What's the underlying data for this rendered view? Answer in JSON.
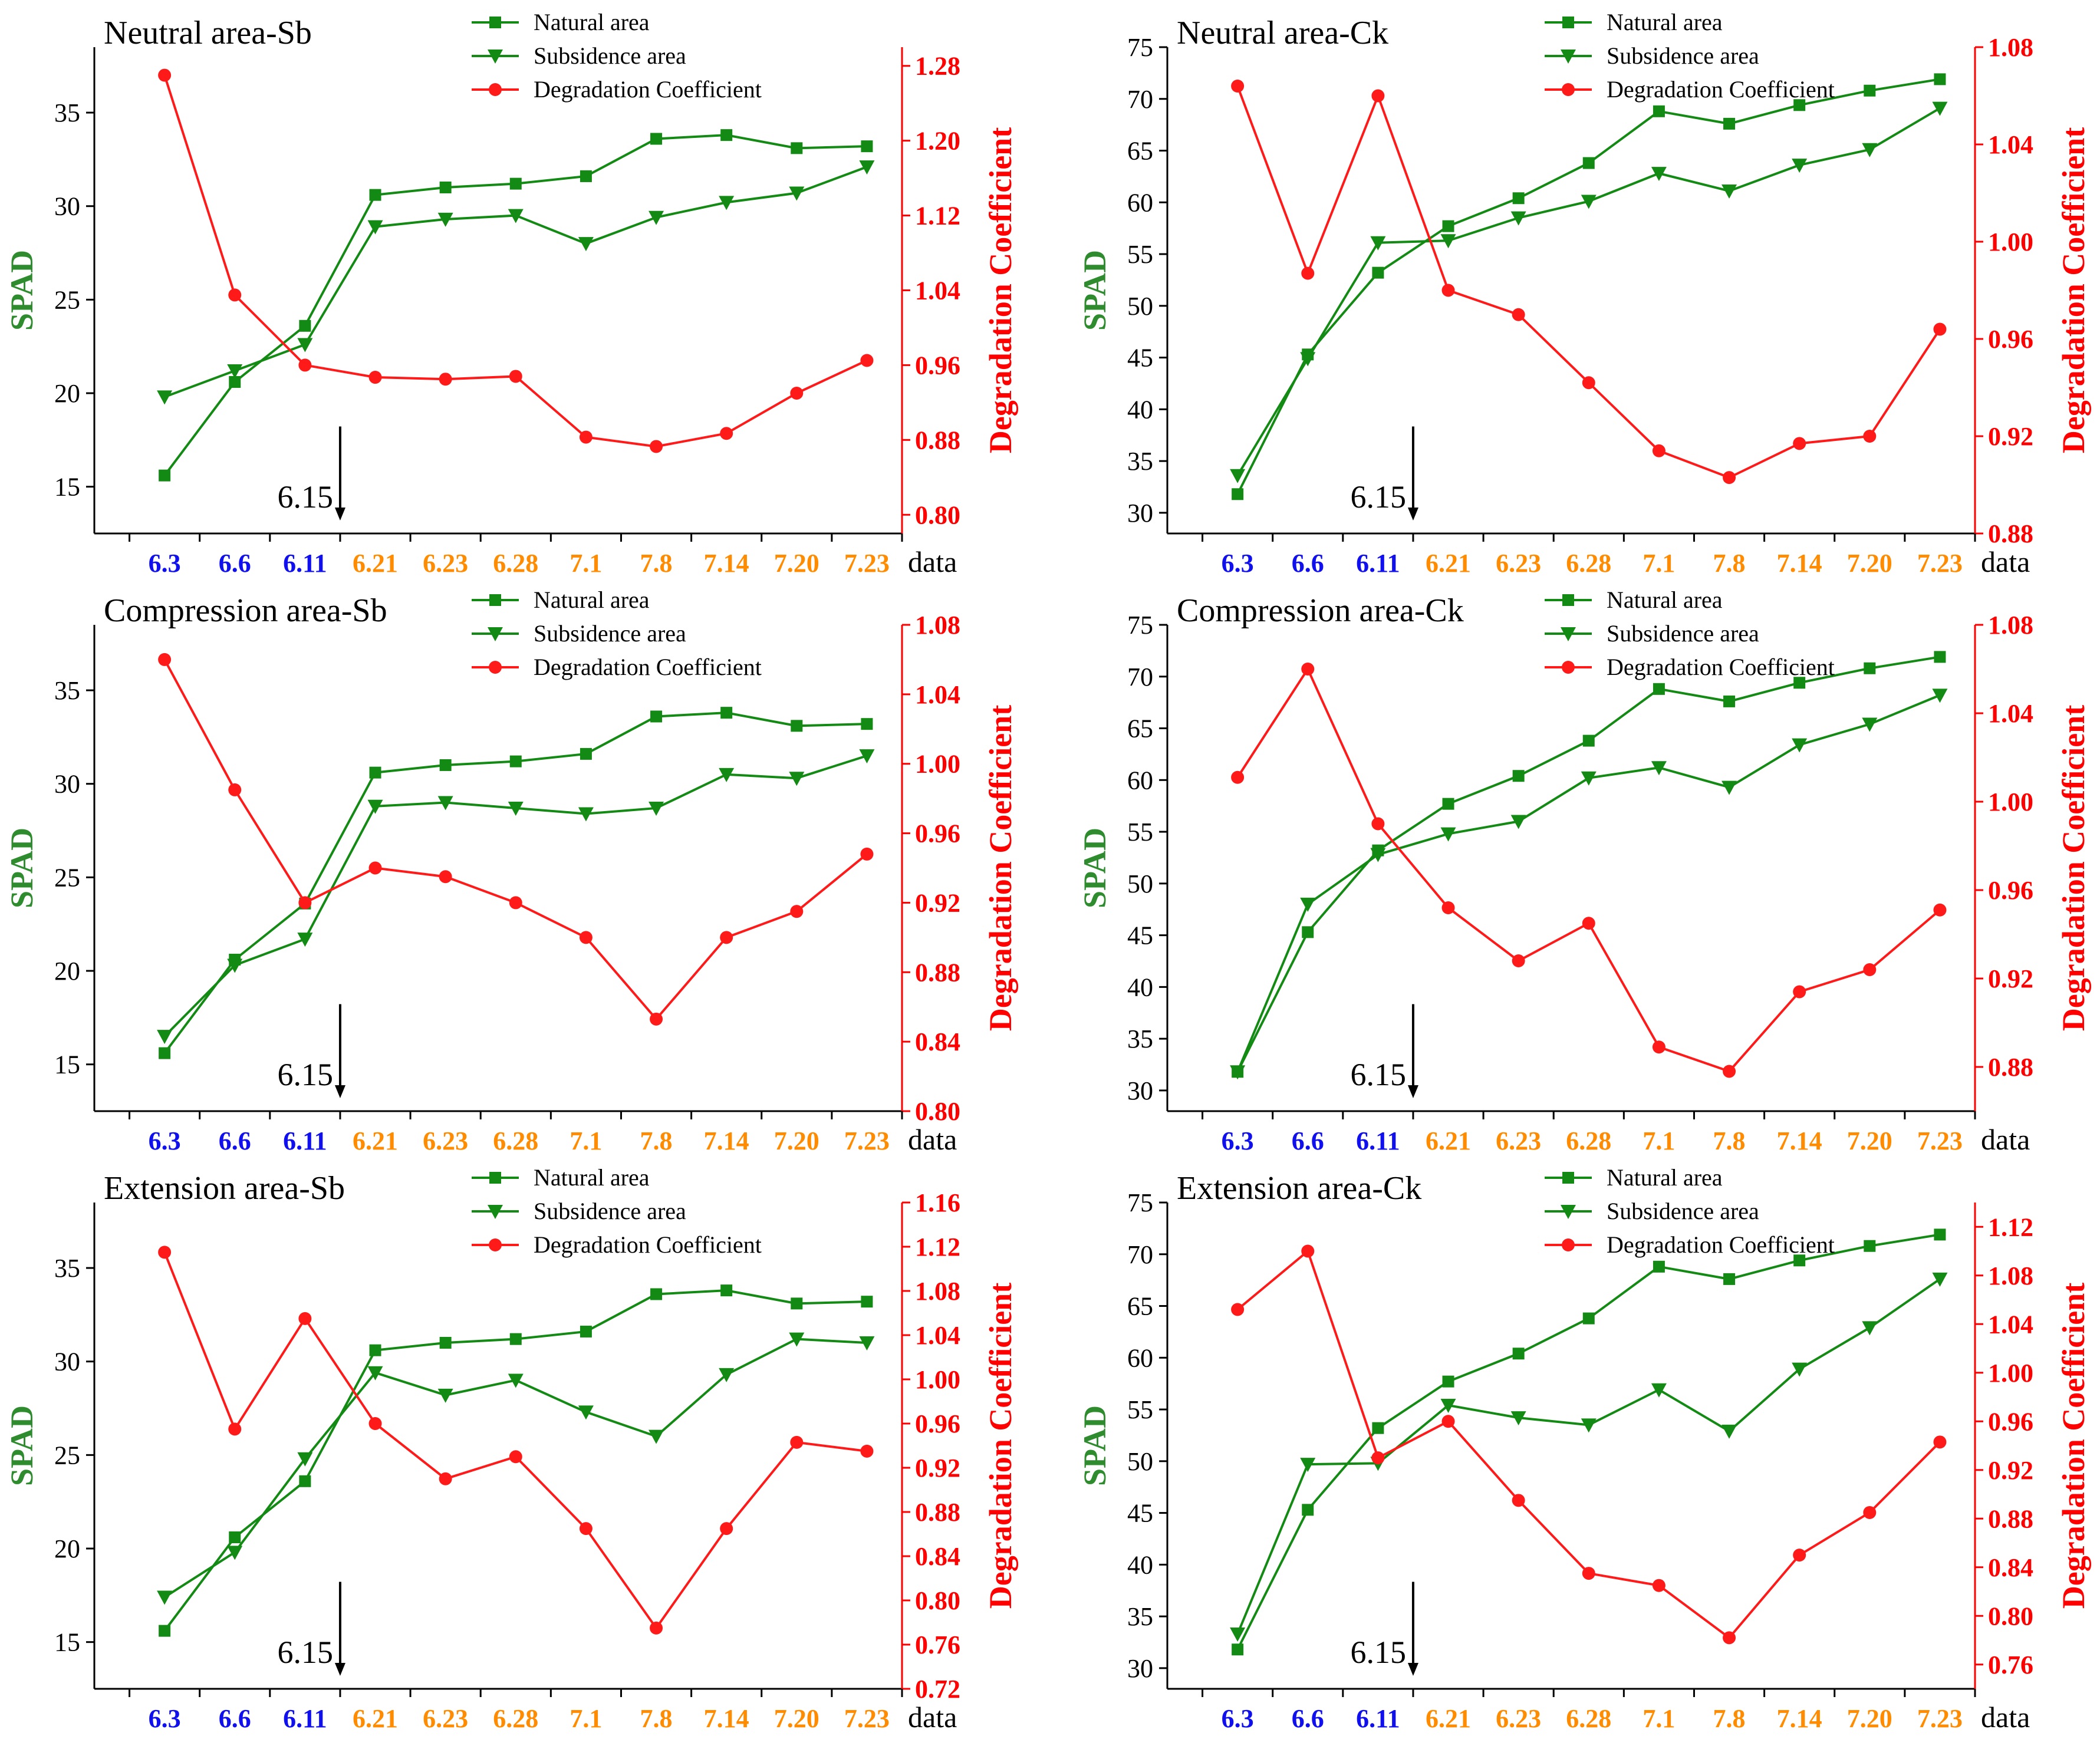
{
  "x_name": "data",
  "marker_label": "6.15",
  "marker_after_index": 2,
  "colors": {
    "natural": "#138a13",
    "subsidence": "#138a13",
    "degradation": "#ff1a1a",
    "axis_left_label": "#2e8b2e",
    "axis_right": "#ff0000",
    "x_before": "#1010ee",
    "x_after": "#ff8c00"
  },
  "chart_data": [
    {
      "type": "line",
      "title": "Neutral area-Sb",
      "categories": [
        "6.3",
        "6.6",
        "6.11",
        "6.21",
        "6.23",
        "6.28",
        "7.1",
        "7.8",
        "7.14",
        "7.20",
        "7.23"
      ],
      "xlabel": "data",
      "ylabel": "SPAD",
      "y2label": "Degradation Coefficient",
      "ylim": [
        12.5,
        38.5
      ],
      "yticks": [
        15,
        20,
        25,
        30,
        35
      ],
      "y2lim": [
        0.78,
        1.3
      ],
      "y2ticks": [
        "0.80",
        "0.88",
        "0.96",
        "1.04",
        "1.12",
        "1.20",
        "1.28"
      ],
      "series": [
        {
          "name": "Natural area",
          "axis": "left",
          "marker": "square",
          "values": [
            15.6,
            20.6,
            23.6,
            30.6,
            31.0,
            31.2,
            31.6,
            33.6,
            33.8,
            33.1,
            33.2
          ]
        },
        {
          "name": "Subsidence area",
          "axis": "left",
          "marker": "triangle-down",
          "values": [
            19.8,
            21.2,
            22.6,
            28.9,
            29.3,
            29.5,
            28.0,
            29.4,
            30.2,
            30.7,
            32.1
          ]
        },
        {
          "name": "Degradation Coefficient",
          "axis": "right",
          "marker": "circle",
          "values": [
            1.27,
            1.035,
            0.96,
            0.947,
            0.945,
            0.948,
            0.883,
            0.873,
            0.887,
            0.93,
            0.965
          ]
        }
      ]
    },
    {
      "type": "line",
      "title": "Neutral area-Ck",
      "categories": [
        "6.3",
        "6.6",
        "6.11",
        "6.21",
        "6.23",
        "6.28",
        "7.1",
        "7.8",
        "7.14",
        "7.20",
        "7.23"
      ],
      "xlabel": "data",
      "ylabel": "SPAD",
      "y2label": "Degradation Coefficient",
      "ylim": [
        28,
        75
      ],
      "yticks": [
        30,
        35,
        40,
        45,
        50,
        55,
        60,
        65,
        70,
        75
      ],
      "y2lim": [
        0.88,
        1.08
      ],
      "y2ticks": [
        "0.88",
        "0.92",
        "0.96",
        "1.00",
        "1.04",
        "1.08"
      ],
      "series": [
        {
          "name": "Natural area",
          "axis": "left",
          "marker": "square",
          "values": [
            31.8,
            45.3,
            53.2,
            57.7,
            60.4,
            63.8,
            68.8,
            67.6,
            69.4,
            70.8,
            71.9
          ]
        },
        {
          "name": "Subsidence area",
          "axis": "left",
          "marker": "triangle-down",
          "values": [
            33.6,
            44.9,
            56.1,
            56.3,
            58.5,
            60.1,
            62.8,
            61.1,
            63.6,
            65.1,
            69.1
          ]
        },
        {
          "name": "Degradation Coefficient",
          "axis": "right",
          "marker": "circle",
          "values": [
            1.064,
            0.987,
            1.06,
            0.98,
            0.97,
            0.942,
            0.914,
            0.903,
            0.917,
            0.92,
            0.964
          ]
        }
      ]
    },
    {
      "type": "line",
      "title": "Compression area-Sb",
      "categories": [
        "6.3",
        "6.6",
        "6.11",
        "6.21",
        "6.23",
        "6.28",
        "7.1",
        "7.8",
        "7.14",
        "7.20",
        "7.23"
      ],
      "xlabel": "data",
      "ylabel": "SPAD",
      "y2label": "Degradation Coefficient",
      "ylim": [
        12.5,
        38.5
      ],
      "yticks": [
        15,
        20,
        25,
        30,
        35
      ],
      "y2lim": [
        0.8,
        1.08
      ],
      "y2ticks": [
        "0.80",
        "0.84",
        "0.88",
        "0.92",
        "0.96",
        "1.00",
        "1.04",
        "1.08"
      ],
      "series": [
        {
          "name": "Natural area",
          "axis": "left",
          "marker": "square",
          "values": [
            15.6,
            20.6,
            23.6,
            30.6,
            31.0,
            31.2,
            31.6,
            33.6,
            33.8,
            33.1,
            33.2
          ]
        },
        {
          "name": "Subsidence area",
          "axis": "left",
          "marker": "triangle-down",
          "values": [
            16.5,
            20.3,
            21.7,
            28.8,
            29.0,
            28.7,
            28.4,
            28.7,
            30.5,
            30.3,
            31.5
          ]
        },
        {
          "name": "Degradation Coefficient",
          "axis": "right",
          "marker": "circle",
          "values": [
            1.06,
            0.985,
            0.92,
            0.94,
            0.935,
            0.92,
            0.9,
            0.853,
            0.9,
            0.915,
            0.948
          ]
        }
      ]
    },
    {
      "type": "line",
      "title": "Compression area-Ck",
      "categories": [
        "6.3",
        "6.6",
        "6.11",
        "6.21",
        "6.23",
        "6.28",
        "7.1",
        "7.8",
        "7.14",
        "7.20",
        "7.23"
      ],
      "xlabel": "data",
      "ylabel": "SPAD",
      "y2label": "Degradation Coefficient",
      "ylim": [
        28,
        75
      ],
      "yticks": [
        30,
        35,
        40,
        45,
        50,
        55,
        60,
        65,
        70,
        75
      ],
      "y2lim": [
        0.86,
        1.08
      ],
      "y2ticks": [
        "0.88",
        "0.92",
        "0.96",
        "1.00",
        "1.04",
        "1.08"
      ],
      "series": [
        {
          "name": "Natural area",
          "axis": "left",
          "marker": "square",
          "values": [
            31.8,
            45.3,
            53.2,
            57.7,
            60.4,
            63.8,
            68.8,
            67.6,
            69.4,
            70.8,
            71.9
          ]
        },
        {
          "name": "Subsidence area",
          "axis": "left",
          "marker": "triangle-down",
          "values": [
            31.8,
            48.0,
            52.8,
            54.8,
            56.0,
            60.2,
            61.2,
            59.3,
            63.4,
            65.4,
            68.2
          ]
        },
        {
          "name": "Degradation Coefficient",
          "axis": "right",
          "marker": "circle",
          "values": [
            1.011,
            1.06,
            0.99,
            0.952,
            0.928,
            0.945,
            0.889,
            0.878,
            0.914,
            0.924,
            0.951
          ]
        }
      ]
    },
    {
      "type": "line",
      "title": "Extension area-Sb",
      "categories": [
        "6.3",
        "6.6",
        "6.11",
        "6.21",
        "6.23",
        "6.28",
        "7.1",
        "7.8",
        "7.14",
        "7.20",
        "7.23"
      ],
      "xlabel": "data",
      "ylabel": "SPAD",
      "y2label": "Degradation Coefficient",
      "ylim": [
        12.5,
        38.5
      ],
      "yticks": [
        15,
        20,
        25,
        30,
        35
      ],
      "y2lim": [
        0.72,
        1.16
      ],
      "y2ticks": [
        "0.72",
        "0.76",
        "0.80",
        "0.84",
        "0.88",
        "0.92",
        "0.96",
        "1.00",
        "1.04",
        "1.08",
        "1.12",
        "1.16"
      ],
      "series": [
        {
          "name": "Natural area",
          "axis": "left",
          "marker": "square",
          "values": [
            15.6,
            20.6,
            23.6,
            30.6,
            31.0,
            31.2,
            31.6,
            33.6,
            33.8,
            33.1,
            33.2
          ]
        },
        {
          "name": "Subsidence area",
          "axis": "left",
          "marker": "triangle-down",
          "values": [
            17.4,
            19.8,
            24.8,
            29.4,
            28.2,
            29.0,
            27.3,
            26.0,
            29.3,
            31.2,
            31.0
          ]
        },
        {
          "name": "Degradation Coefficient",
          "axis": "right",
          "marker": "circle",
          "values": [
            1.115,
            0.955,
            1.055,
            0.96,
            0.91,
            0.93,
            0.865,
            0.775,
            0.865,
            0.943,
            0.935
          ]
        }
      ]
    },
    {
      "type": "line",
      "title": "Extension area-Ck",
      "categories": [
        "6.3",
        "6.6",
        "6.11",
        "6.21",
        "6.23",
        "6.28",
        "7.1",
        "7.8",
        "7.14",
        "7.20",
        "7.23"
      ],
      "xlabel": "data",
      "ylabel": "SPAD",
      "y2label": "Degradation Coefficient",
      "ylim": [
        28,
        75
      ],
      "yticks": [
        30,
        35,
        40,
        45,
        50,
        55,
        60,
        65,
        70,
        75
      ],
      "y2lim": [
        0.74,
        1.14
      ],
      "y2ticks": [
        "0.76",
        "0.80",
        "0.84",
        "0.88",
        "0.92",
        "0.96",
        "1.00",
        "1.04",
        "1.08",
        "1.12"
      ],
      "series": [
        {
          "name": "Natural area",
          "axis": "left",
          "marker": "square",
          "values": [
            31.8,
            45.3,
            53.2,
            57.7,
            60.4,
            63.8,
            68.8,
            67.6,
            69.4,
            70.8,
            71.9
          ]
        },
        {
          "name": "Subsidence area",
          "axis": "left",
          "marker": "triangle-down",
          "values": [
            33.3,
            49.7,
            49.8,
            55.4,
            54.2,
            53.5,
            56.9,
            52.9,
            58.9,
            62.9,
            67.6
          ]
        },
        {
          "name": "Degradation Coefficient",
          "axis": "right",
          "marker": "circle",
          "values": [
            1.052,
            1.1,
            0.93,
            0.96,
            0.895,
            0.835,
            0.825,
            0.782,
            0.85,
            0.885,
            0.943
          ]
        }
      ]
    }
  ]
}
